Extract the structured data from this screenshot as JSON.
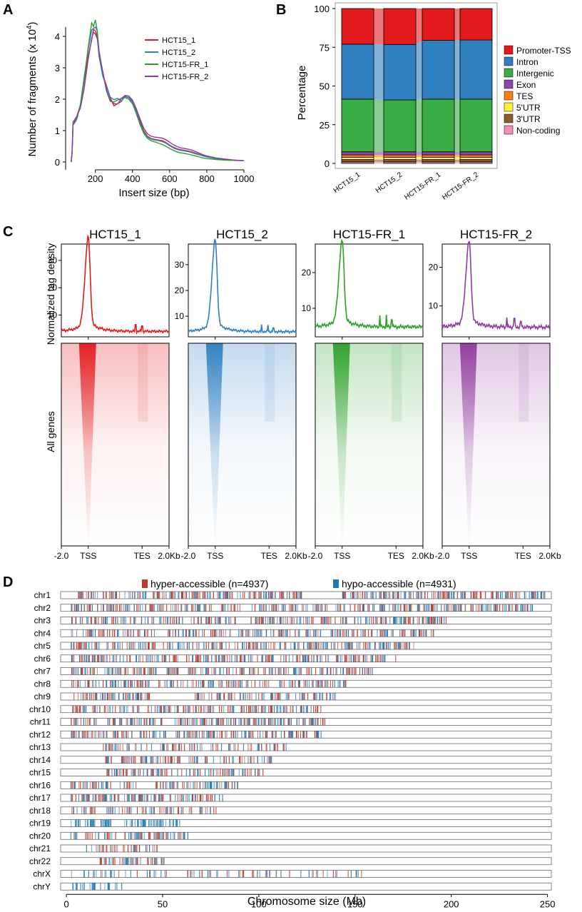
{
  "panel_labels": {
    "a": "A",
    "b": "B",
    "c": "C",
    "d": "D"
  },
  "colors": {
    "hct15_1": "#e31a1c",
    "hct15_2": "#2f7fc1",
    "fr_1": "#2ca02c",
    "fr_2": "#8e3a9e",
    "hyper": "#c0392b",
    "hypo": "#1f78b4"
  },
  "chart_data": [
    {
      "id": "A",
      "type": "line",
      "title": "",
      "xlabel": "Insert size (bp)",
      "ylabel": "Number of fragments (x 10",
      "ylabel_sup": "4",
      "ylabel_close": ")",
      "xlim": [
        40,
        1000
      ],
      "ylim": [
        -0.25,
        4.75
      ],
      "xticks": [
        200,
        400,
        600,
        800,
        1000
      ],
      "xtick_labels": [
        "200",
        "400",
        "600",
        "800",
        "1000"
      ],
      "yticks": [
        0,
        1,
        2,
        3,
        4
      ],
      "ytick_labels": [
        "0",
        "1",
        "2",
        "3",
        "4"
      ],
      "legend": [
        "HCT15_1",
        "HCT15_2",
        "HCT15-FR_1",
        "HCT15-FR_2"
      ],
      "series": [
        {
          "name": "HCT15_1",
          "x": [
            70,
            75,
            80,
            100,
            120,
            140,
            160,
            180,
            190,
            200,
            210,
            220,
            240,
            260,
            280,
            300,
            320,
            340,
            360,
            380,
            400,
            420,
            440,
            460,
            480,
            500,
            520,
            540,
            560,
            580,
            600,
            620,
            640,
            660,
            680,
            700,
            720,
            740,
            760,
            780,
            800,
            850,
            900,
            950,
            1000
          ],
          "y": [
            0.0,
            0.3,
            1.2,
            1.4,
            1.75,
            2.5,
            3.4,
            4.0,
            4.15,
            4.2,
            4.0,
            3.4,
            2.75,
            2.3,
            2.0,
            1.85,
            1.9,
            2.0,
            2.1,
            2.1,
            1.95,
            1.65,
            1.3,
            1.0,
            0.82,
            0.75,
            0.72,
            0.7,
            0.68,
            0.62,
            0.54,
            0.47,
            0.42,
            0.39,
            0.37,
            0.35,
            0.32,
            0.28,
            0.24,
            0.2,
            0.17,
            0.12,
            0.08,
            0.06,
            0.04
          ]
        },
        {
          "name": "HCT15_2",
          "x": [
            70,
            75,
            80,
            100,
            120,
            140,
            160,
            180,
            190,
            200,
            210,
            220,
            240,
            260,
            280,
            300,
            320,
            340,
            360,
            380,
            400,
            420,
            440,
            460,
            480,
            500,
            520,
            540,
            560,
            580,
            600,
            620,
            640,
            660,
            680,
            700,
            720,
            740,
            760,
            780,
            800,
            850,
            900,
            950,
            1000
          ],
          "y": [
            0.0,
            0.3,
            1.25,
            1.45,
            1.8,
            2.6,
            3.5,
            4.15,
            4.3,
            4.3,
            4.1,
            3.5,
            2.8,
            2.35,
            2.05,
            1.9,
            1.92,
            2.0,
            2.08,
            2.05,
            1.9,
            1.6,
            1.25,
            0.95,
            0.8,
            0.73,
            0.7,
            0.68,
            0.65,
            0.6,
            0.52,
            0.45,
            0.4,
            0.37,
            0.35,
            0.33,
            0.3,
            0.26,
            0.23,
            0.19,
            0.16,
            0.11,
            0.08,
            0.06,
            0.04
          ]
        },
        {
          "name": "HCT15-FR_1",
          "x": [
            70,
            75,
            80,
            100,
            120,
            140,
            160,
            180,
            190,
            200,
            210,
            220,
            240,
            260,
            280,
            300,
            320,
            340,
            360,
            380,
            400,
            420,
            440,
            460,
            480,
            500,
            520,
            540,
            560,
            580,
            600,
            620,
            640,
            660,
            680,
            700,
            720,
            740,
            760,
            780,
            800,
            850,
            900,
            950,
            1000
          ],
          "y": [
            0.0,
            0.35,
            1.3,
            1.5,
            1.85,
            2.7,
            3.6,
            4.3,
            4.45,
            4.45,
            4.2,
            3.55,
            2.85,
            2.35,
            2.05,
            1.88,
            1.9,
            1.98,
            2.05,
            2.0,
            1.85,
            1.55,
            1.2,
            0.92,
            0.76,
            0.68,
            0.64,
            0.6,
            0.56,
            0.5,
            0.43,
            0.37,
            0.32,
            0.29,
            0.27,
            0.25,
            0.22,
            0.19,
            0.16,
            0.13,
            0.11,
            0.08,
            0.06,
            0.05,
            0.04
          ]
        },
        {
          "name": "HCT15-FR_2",
          "x": [
            70,
            75,
            80,
            100,
            120,
            140,
            160,
            180,
            190,
            200,
            210,
            220,
            240,
            260,
            280,
            300,
            320,
            340,
            360,
            380,
            400,
            420,
            440,
            460,
            480,
            500,
            520,
            540,
            560,
            580,
            600,
            620,
            640,
            660,
            680,
            700,
            720,
            740,
            760,
            780,
            800,
            850,
            900,
            950,
            1000
          ],
          "y": [
            0.0,
            0.28,
            1.15,
            1.35,
            1.7,
            2.45,
            3.3,
            3.95,
            4.1,
            4.1,
            3.95,
            3.4,
            2.75,
            2.3,
            2.02,
            1.9,
            1.95,
            2.05,
            2.12,
            2.1,
            1.97,
            1.7,
            1.38,
            1.08,
            0.9,
            0.82,
            0.79,
            0.78,
            0.76,
            0.71,
            0.63,
            0.55,
            0.49,
            0.45,
            0.43,
            0.41,
            0.38,
            0.33,
            0.28,
            0.23,
            0.19,
            0.13,
            0.09,
            0.06,
            0.04
          ]
        }
      ]
    },
    {
      "id": "B",
      "type": "bar",
      "stacked": true,
      "ylabel": "Percentage",
      "ylim": [
        0,
        100
      ],
      "yticks": [
        0,
        25,
        50,
        75,
        100
      ],
      "ytick_labels": [
        "0",
        "25",
        "50",
        "75",
        "100"
      ],
      "categories": [
        "HCT15_1",
        "HCT15_2",
        "HCT15-FR_1",
        "HCT15-FR_2"
      ],
      "series": [
        {
          "name": "Non-coding",
          "color": "#f38db8",
          "values": [
            1.0,
            1.0,
            1.0,
            1.0
          ]
        },
        {
          "name": "3'UTR",
          "color": "#8c5a2b",
          "values": [
            1.5,
            1.5,
            1.5,
            1.5
          ]
        },
        {
          "name": "5'UTR",
          "color": "#ffef3a",
          "values": [
            1.5,
            1.5,
            1.5,
            1.5
          ]
        },
        {
          "name": "TES",
          "color": "#ff7f0e",
          "values": [
            1.5,
            1.5,
            1.5,
            1.5
          ]
        },
        {
          "name": "Exon",
          "color": "#8e44ad",
          "values": [
            2.0,
            2.0,
            2.0,
            2.0
          ]
        },
        {
          "name": "Intergenic",
          "color": "#3aac44",
          "values": [
            34.0,
            33.5,
            34.0,
            34.0
          ]
        },
        {
          "name": "Intron",
          "color": "#2f7fc1",
          "values": [
            35.5,
            35.8,
            38.0,
            38.2
          ]
        },
        {
          "name": "Promoter-TSS",
          "color": "#e31a1c",
          "values": [
            23.0,
            23.2,
            20.5,
            20.3
          ]
        }
      ],
      "legend_order": [
        "Promoter-TSS",
        "Intron",
        "Intergenic",
        "Exon",
        "TES",
        "5'UTR",
        "3'UTR",
        "Non-coding"
      ]
    },
    {
      "id": "C",
      "type": "line",
      "ylabel_profile": "Normalized tag density",
      "ylabel_heatmap": "All genes",
      "xtick_labels": [
        "-2.0",
        "TSS",
        "TES",
        "2.0Kb"
      ],
      "panels": [
        {
          "title": "HCT15_1",
          "color_key": "hct15_1",
          "ylim": [
            2,
            36
          ],
          "yticks": [
            10,
            20,
            30
          ],
          "peak": 35,
          "base": 4,
          "spikes": [
            [
              0.69,
              6.5
            ],
            [
              0.75,
              6.0
            ]
          ]
        },
        {
          "title": "HCT15_2",
          "color_key": "hct15_2",
          "ylim": [
            2,
            38
          ],
          "yticks": [
            10,
            20,
            30
          ],
          "peak": 36,
          "base": 4,
          "spikes": [
            [
              0.68,
              6.8
            ],
            [
              0.74,
              6.6
            ],
            [
              0.79,
              5.5
            ]
          ]
        },
        {
          "title": "HCT15-FR_1",
          "color_key": "fr_1",
          "ylim": [
            2,
            28
          ],
          "yticks": [
            10,
            20
          ],
          "peak": 26.5,
          "base": 4.8,
          "spikes": [
            [
              0.6,
              8.0
            ],
            [
              0.66,
              8.2
            ],
            [
              0.71,
              6.8
            ]
          ]
        },
        {
          "title": "HCT15-FR_2",
          "color_key": "fr_2",
          "ylim": [
            2,
            26
          ],
          "yticks": [
            10,
            20
          ],
          "peak": 24.5,
          "base": 4.5,
          "spikes": [
            [
              0.6,
              7.0
            ],
            [
              0.67,
              6.8
            ],
            [
              0.73,
              6.0
            ]
          ]
        }
      ]
    },
    {
      "id": "D",
      "type": "heatmap",
      "xlabel": "Chromosome size (Mb)",
      "xlim": [
        -3,
        252
      ],
      "xticks": [
        0,
        50,
        100,
        150,
        200,
        250
      ],
      "xtick_labels": [
        "0",
        "50",
        "100",
        "150",
        "200",
        "250"
      ],
      "legend": [
        {
          "label": "hyper-accessible (n=4937)",
          "color_key": "hyper"
        },
        {
          "label": "hypo-accessible (n=4931)",
          "color_key": "hypo"
        }
      ],
      "chromosomes": [
        {
          "name": "chr1",
          "length": 249,
          "start": 5,
          "gap": [
            122,
            143
          ],
          "dens": 1.0
        },
        {
          "name": "chr2",
          "length": 243,
          "start": 2,
          "gap": [
            90,
            96
          ],
          "dens": 0.9
        },
        {
          "name": "chr3",
          "length": 198,
          "start": 2,
          "gap": [
            88,
            93
          ],
          "dens": 0.9
        },
        {
          "name": "chr4",
          "length": 191,
          "start": 2,
          "gap": [
            48,
            52
          ],
          "dens": 0.8
        },
        {
          "name": "chr5",
          "length": 181,
          "start": 2,
          "gap": [
            46,
            50
          ],
          "dens": 0.85
        },
        {
          "name": "chr6",
          "length": 171,
          "start": 2,
          "gap": [
            58,
            62
          ],
          "dens": 0.9
        },
        {
          "name": "chr7",
          "length": 159,
          "start": 2,
          "gap": [
            58,
            62
          ],
          "dens": 0.85
        },
        {
          "name": "chr8",
          "length": 146,
          "start": 2,
          "gap": [
            43,
            47
          ],
          "dens": 0.8
        },
        {
          "name": "chr9",
          "length": 141,
          "start": 2,
          "gap": [
            44,
            66
          ],
          "dens": 0.85
        },
        {
          "name": "chr10",
          "length": 135,
          "start": 2,
          "gap": [
            38,
            42
          ],
          "dens": 0.85
        },
        {
          "name": "chr11",
          "length": 135,
          "start": 2,
          "gap": [
            51,
            55
          ],
          "dens": 0.95
        },
        {
          "name": "chr12",
          "length": 133,
          "start": 2,
          "gap": [
            34,
            38
          ],
          "dens": 0.9
        },
        {
          "name": "chr13",
          "length": 115,
          "start": 19,
          "gap": [
            0,
            0
          ],
          "dens": 0.6
        },
        {
          "name": "chr14",
          "length": 107,
          "start": 19,
          "gap": [
            0,
            0
          ],
          "dens": 0.8
        },
        {
          "name": "chr15",
          "length": 102,
          "start": 20,
          "gap": [
            0,
            0
          ],
          "dens": 0.8
        },
        {
          "name": "chr16",
          "length": 90,
          "start": 2,
          "gap": [
            36,
            46
          ],
          "dens": 0.9
        },
        {
          "name": "chr17",
          "length": 81,
          "start": 2,
          "gap": [
            0,
            0
          ],
          "dens": 1.0
        },
        {
          "name": "chr18",
          "length": 78,
          "start": 2,
          "gap": [
            15,
            19
          ],
          "dens": 0.7
        },
        {
          "name": "chr19",
          "length": 59,
          "start": 2,
          "gap": [
            24,
            28
          ],
          "dens": 1.1
        },
        {
          "name": "chr20",
          "length": 63,
          "start": 2,
          "gap": [
            26,
            30
          ],
          "dens": 0.9
        },
        {
          "name": "chr21",
          "length": 48,
          "start": 10,
          "gap": [
            0,
            0
          ],
          "dens": 0.7
        },
        {
          "name": "chr22",
          "length": 51,
          "start": 17,
          "gap": [
            0,
            0
          ],
          "dens": 1.0
        },
        {
          "name": "chrX",
          "length": 155,
          "start": 2,
          "gap": [
            58,
            62
          ],
          "dens": 0.35
        },
        {
          "name": "chrY",
          "length": 59,
          "start": 2,
          "gap": [
            30,
            58
          ],
          "dens": 0.6
        }
      ]
    }
  ]
}
